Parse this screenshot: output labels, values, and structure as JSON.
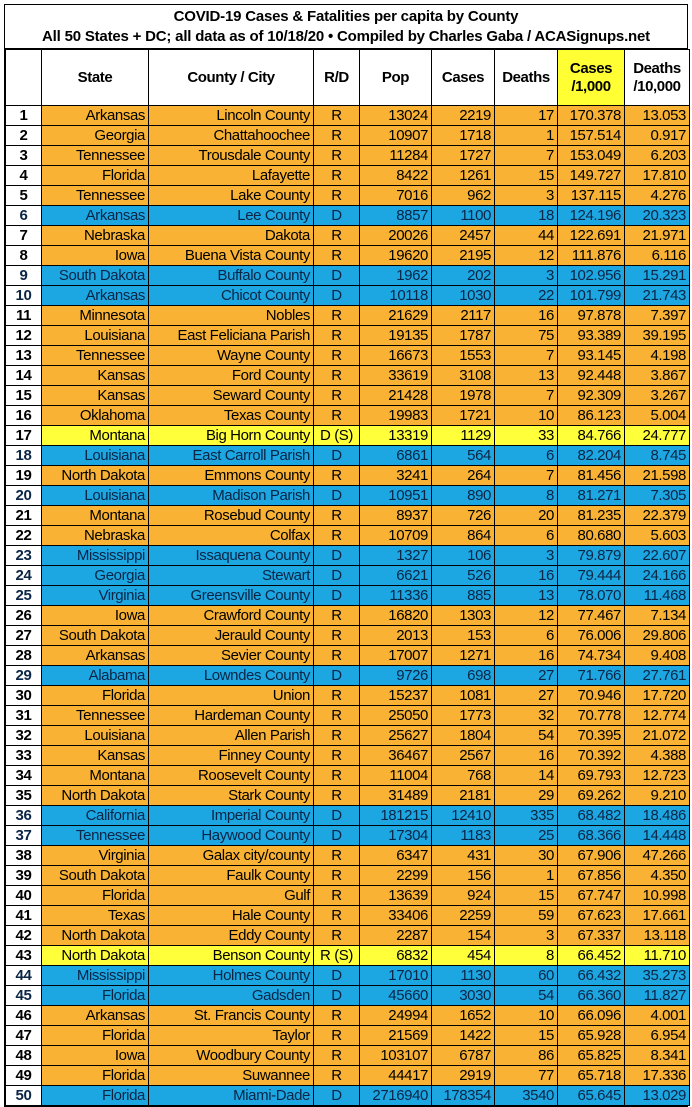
{
  "title": {
    "line1": "COVID-19 Cases & Fatalities per capita by County",
    "line2": "All 50 States + DC; all data as of 10/18/20  • Compiled by Charles Gaba / ACASignups.net"
  },
  "colors": {
    "republican": "#f9b233",
    "democrat": "#1ca6e2",
    "special": "#ffff3a"
  },
  "headers": {
    "index": "",
    "state": "State",
    "county": "County / City",
    "rd": "R/D",
    "pop": "Pop",
    "cases": "Cases",
    "deaths": "Deaths",
    "cases_per_1000": "Cases /1,000",
    "deaths_per_10000": "Deaths /10,000"
  },
  "rows": [
    {
      "n": "1",
      "state": "Arkansas",
      "county": "Lincoln County",
      "rd": "R",
      "pop": "13024",
      "cases": "2219",
      "deaths": "17",
      "c1000": "170.378",
      "d10000": "13.053"
    },
    {
      "n": "2",
      "state": "Georgia",
      "county": "Chattahoochee",
      "rd": "R",
      "pop": "10907",
      "cases": "1718",
      "deaths": "1",
      "c1000": "157.514",
      "d10000": "0.917"
    },
    {
      "n": "3",
      "state": "Tennessee",
      "county": "Trousdale County",
      "rd": "R",
      "pop": "11284",
      "cases": "1727",
      "deaths": "7",
      "c1000": "153.049",
      "d10000": "6.203"
    },
    {
      "n": "4",
      "state": "Florida",
      "county": "Lafayette",
      "rd": "R",
      "pop": "8422",
      "cases": "1261",
      "deaths": "15",
      "c1000": "149.727",
      "d10000": "17.810"
    },
    {
      "n": "5",
      "state": "Tennessee",
      "county": "Lake County",
      "rd": "R",
      "pop": "7016",
      "cases": "962",
      "deaths": "3",
      "c1000": "137.115",
      "d10000": "4.276"
    },
    {
      "n": "6",
      "state": "Arkansas",
      "county": "Lee County",
      "rd": "D",
      "pop": "8857",
      "cases": "1100",
      "deaths": "18",
      "c1000": "124.196",
      "d10000": "20.323"
    },
    {
      "n": "7",
      "state": "Nebraska",
      "county": "Dakota",
      "rd": "R",
      "pop": "20026",
      "cases": "2457",
      "deaths": "44",
      "c1000": "122.691",
      "d10000": "21.971"
    },
    {
      "n": "8",
      "state": "Iowa",
      "county": "Buena Vista County",
      "rd": "R",
      "pop": "19620",
      "cases": "2195",
      "deaths": "12",
      "c1000": "111.876",
      "d10000": "6.116"
    },
    {
      "n": "9",
      "state": "South Dakota",
      "county": "Buffalo County",
      "rd": "D",
      "pop": "1962",
      "cases": "202",
      "deaths": "3",
      "c1000": "102.956",
      "d10000": "15.291"
    },
    {
      "n": "10",
      "state": "Arkansas",
      "county": "Chicot County",
      "rd": "D",
      "pop": "10118",
      "cases": "1030",
      "deaths": "22",
      "c1000": "101.799",
      "d10000": "21.743"
    },
    {
      "n": "11",
      "state": "Minnesota",
      "county": "Nobles",
      "rd": "R",
      "pop": "21629",
      "cases": "2117",
      "deaths": "16",
      "c1000": "97.878",
      "d10000": "7.397"
    },
    {
      "n": "12",
      "state": "Louisiana",
      "county": "East Feliciana Parish",
      "rd": "R",
      "pop": "19135",
      "cases": "1787",
      "deaths": "75",
      "c1000": "93.389",
      "d10000": "39.195"
    },
    {
      "n": "13",
      "state": "Tennessee",
      "county": "Wayne County",
      "rd": "R",
      "pop": "16673",
      "cases": "1553",
      "deaths": "7",
      "c1000": "93.145",
      "d10000": "4.198"
    },
    {
      "n": "14",
      "state": "Kansas",
      "county": "Ford County",
      "rd": "R",
      "pop": "33619",
      "cases": "3108",
      "deaths": "13",
      "c1000": "92.448",
      "d10000": "3.867"
    },
    {
      "n": "15",
      "state": "Kansas",
      "county": "Seward County",
      "rd": "R",
      "pop": "21428",
      "cases": "1978",
      "deaths": "7",
      "c1000": "92.309",
      "d10000": "3.267"
    },
    {
      "n": "16",
      "state": "Oklahoma",
      "county": "Texas County",
      "rd": "R",
      "pop": "19983",
      "cases": "1721",
      "deaths": "10",
      "c1000": "86.123",
      "d10000": "5.004"
    },
    {
      "n": "17",
      "state": "Montana",
      "county": "Big Horn County",
      "rd": "D (S)",
      "pop": "13319",
      "cases": "1129",
      "deaths": "33",
      "c1000": "84.766",
      "d10000": "24.777",
      "special": true
    },
    {
      "n": "18",
      "state": "Louisiana",
      "county": "East Carroll Parish",
      "rd": "D",
      "pop": "6861",
      "cases": "564",
      "deaths": "6",
      "c1000": "82.204",
      "d10000": "8.745"
    },
    {
      "n": "19",
      "state": "North Dakota",
      "county": "Emmons County",
      "rd": "R",
      "pop": "3241",
      "cases": "264",
      "deaths": "7",
      "c1000": "81.456",
      "d10000": "21.598"
    },
    {
      "n": "20",
      "state": "Louisiana",
      "county": "Madison Parish",
      "rd": "D",
      "pop": "10951",
      "cases": "890",
      "deaths": "8",
      "c1000": "81.271",
      "d10000": "7.305"
    },
    {
      "n": "21",
      "state": "Montana",
      "county": "Rosebud County",
      "rd": "R",
      "pop": "8937",
      "cases": "726",
      "deaths": "20",
      "c1000": "81.235",
      "d10000": "22.379"
    },
    {
      "n": "22",
      "state": "Nebraska",
      "county": "Colfax",
      "rd": "R",
      "pop": "10709",
      "cases": "864",
      "deaths": "6",
      "c1000": "80.680",
      "d10000": "5.603"
    },
    {
      "n": "23",
      "state": "Mississippi",
      "county": "Issaquena County",
      "rd": "D",
      "pop": "1327",
      "cases": "106",
      "deaths": "3",
      "c1000": "79.879",
      "d10000": "22.607"
    },
    {
      "n": "24",
      "state": "Georgia",
      "county": "Stewart",
      "rd": "D",
      "pop": "6621",
      "cases": "526",
      "deaths": "16",
      "c1000": "79.444",
      "d10000": "24.166"
    },
    {
      "n": "25",
      "state": "Virginia",
      "county": "Greensville County",
      "rd": "D",
      "pop": "11336",
      "cases": "885",
      "deaths": "13",
      "c1000": "78.070",
      "d10000": "11.468"
    },
    {
      "n": "26",
      "state": "Iowa",
      "county": "Crawford County",
      "rd": "R",
      "pop": "16820",
      "cases": "1303",
      "deaths": "12",
      "c1000": "77.467",
      "d10000": "7.134"
    },
    {
      "n": "27",
      "state": "South Dakota",
      "county": "Jerauld County",
      "rd": "R",
      "pop": "2013",
      "cases": "153",
      "deaths": "6",
      "c1000": "76.006",
      "d10000": "29.806"
    },
    {
      "n": "28",
      "state": "Arkansas",
      "county": "Sevier County",
      "rd": "R",
      "pop": "17007",
      "cases": "1271",
      "deaths": "16",
      "c1000": "74.734",
      "d10000": "9.408"
    },
    {
      "n": "29",
      "state": "Alabama",
      "county": "Lowndes County",
      "rd": "D",
      "pop": "9726",
      "cases": "698",
      "deaths": "27",
      "c1000": "71.766",
      "d10000": "27.761"
    },
    {
      "n": "30",
      "state": "Florida",
      "county": "Union",
      "rd": "R",
      "pop": "15237",
      "cases": "1081",
      "deaths": "27",
      "c1000": "70.946",
      "d10000": "17.720"
    },
    {
      "n": "31",
      "state": "Tennessee",
      "county": "Hardeman County",
      "rd": "R",
      "pop": "25050",
      "cases": "1773",
      "deaths": "32",
      "c1000": "70.778",
      "d10000": "12.774"
    },
    {
      "n": "32",
      "state": "Louisiana",
      "county": "Allen Parish",
      "rd": "R",
      "pop": "25627",
      "cases": "1804",
      "deaths": "54",
      "c1000": "70.395",
      "d10000": "21.072"
    },
    {
      "n": "33",
      "state": "Kansas",
      "county": "Finney County",
      "rd": "R",
      "pop": "36467",
      "cases": "2567",
      "deaths": "16",
      "c1000": "70.392",
      "d10000": "4.388"
    },
    {
      "n": "34",
      "state": "Montana",
      "county": "Roosevelt County",
      "rd": "R",
      "pop": "11004",
      "cases": "768",
      "deaths": "14",
      "c1000": "69.793",
      "d10000": "12.723"
    },
    {
      "n": "35",
      "state": "North Dakota",
      "county": "Stark County",
      "rd": "R",
      "pop": "31489",
      "cases": "2181",
      "deaths": "29",
      "c1000": "69.262",
      "d10000": "9.210"
    },
    {
      "n": "36",
      "state": "California",
      "county": "Imperial County",
      "rd": "D",
      "pop": "181215",
      "cases": "12410",
      "deaths": "335",
      "c1000": "68.482",
      "d10000": "18.486"
    },
    {
      "n": "37",
      "state": "Tennessee",
      "county": "Haywood County",
      "rd": "D",
      "pop": "17304",
      "cases": "1183",
      "deaths": "25",
      "c1000": "68.366",
      "d10000": "14.448"
    },
    {
      "n": "38",
      "state": "Virginia",
      "county": "Galax city/county",
      "rd": "R",
      "pop": "6347",
      "cases": "431",
      "deaths": "30",
      "c1000": "67.906",
      "d10000": "47.266"
    },
    {
      "n": "39",
      "state": "South Dakota",
      "county": "Faulk County",
      "rd": "R",
      "pop": "2299",
      "cases": "156",
      "deaths": "1",
      "c1000": "67.856",
      "d10000": "4.350"
    },
    {
      "n": "40",
      "state": "Florida",
      "county": "Gulf",
      "rd": "R",
      "pop": "13639",
      "cases": "924",
      "deaths": "15",
      "c1000": "67.747",
      "d10000": "10.998"
    },
    {
      "n": "41",
      "state": "Texas",
      "county": "Hale County",
      "rd": "R",
      "pop": "33406",
      "cases": "2259",
      "deaths": "59",
      "c1000": "67.623",
      "d10000": "17.661"
    },
    {
      "n": "42",
      "state": "North Dakota",
      "county": "Eddy County",
      "rd": "R",
      "pop": "2287",
      "cases": "154",
      "deaths": "3",
      "c1000": "67.337",
      "d10000": "13.118"
    },
    {
      "n": "43",
      "state": "North Dakota",
      "county": "Benson County",
      "rd": "R (S)",
      "pop": "6832",
      "cases": "454",
      "deaths": "8",
      "c1000": "66.452",
      "d10000": "11.710",
      "special": true
    },
    {
      "n": "44",
      "state": "Mississippi",
      "county": "Holmes County",
      "rd": "D",
      "pop": "17010",
      "cases": "1130",
      "deaths": "60",
      "c1000": "66.432",
      "d10000": "35.273"
    },
    {
      "n": "45",
      "state": "Florida",
      "county": "Gadsden",
      "rd": "D",
      "pop": "45660",
      "cases": "3030",
      "deaths": "54",
      "c1000": "66.360",
      "d10000": "11.827"
    },
    {
      "n": "46",
      "state": "Arkansas",
      "county": "St. Francis County",
      "rd": "R",
      "pop": "24994",
      "cases": "1652",
      "deaths": "10",
      "c1000": "66.096",
      "d10000": "4.001"
    },
    {
      "n": "47",
      "state": "Florida",
      "county": "Taylor",
      "rd": "R",
      "pop": "21569",
      "cases": "1422",
      "deaths": "15",
      "c1000": "65.928",
      "d10000": "6.954"
    },
    {
      "n": "48",
      "state": "Iowa",
      "county": "Woodbury County",
      "rd": "R",
      "pop": "103107",
      "cases": "6787",
      "deaths": "86",
      "c1000": "65.825",
      "d10000": "8.341"
    },
    {
      "n": "49",
      "state": "Florida",
      "county": "Suwannee",
      "rd": "R",
      "pop": "44417",
      "cases": "2919",
      "deaths": "77",
      "c1000": "65.718",
      "d10000": "17.336"
    },
    {
      "n": "50",
      "state": "Florida",
      "county": "Miami-Dade",
      "rd": "D",
      "pop": "2716940",
      "cases": "178354",
      "deaths": "3540",
      "c1000": "65.645",
      "d10000": "13.029"
    }
  ]
}
